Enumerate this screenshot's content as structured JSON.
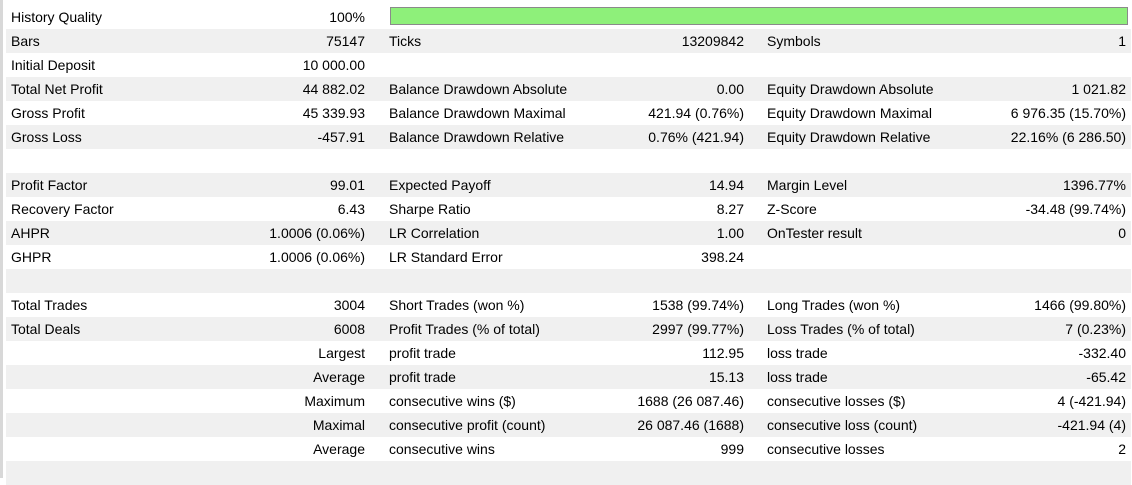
{
  "history_quality_percent": 100,
  "rows": [
    [
      "History Quality",
      "100%"
    ],
    [
      "Bars",
      "75147",
      "Ticks",
      "13209842",
      "Symbols",
      "1"
    ],
    [
      "Initial Deposit",
      "10 000.00"
    ],
    [
      "Total Net Profit",
      "44 882.02",
      "Balance Drawdown Absolute",
      "0.00",
      "Equity Drawdown Absolute",
      "1 021.82"
    ],
    [
      "Gross Profit",
      "45 339.93",
      "Balance Drawdown Maximal",
      "421.94 (0.76%)",
      "Equity Drawdown Maximal",
      "6 976.35 (15.70%)"
    ],
    [
      "Gross Loss",
      "-457.91",
      "Balance Drawdown Relative",
      "0.76% (421.94)",
      "Equity Drawdown Relative",
      "22.16% (6 286.50)"
    ],
    [],
    [
      "Profit Factor",
      "99.01",
      "Expected Payoff",
      "14.94",
      "Margin Level",
      "1396.77%"
    ],
    [
      "Recovery Factor",
      "6.43",
      "Sharpe Ratio",
      "8.27",
      "Z-Score",
      "-34.48 (99.74%)"
    ],
    [
      "AHPR",
      "1.0006 (0.06%)",
      "LR Correlation",
      "1.00",
      "OnTester result",
      "0"
    ],
    [
      "GHPR",
      "1.0006 (0.06%)",
      "LR Standard Error",
      "398.24"
    ],
    [],
    [
      "Total Trades",
      "3004",
      "Short Trades (won %)",
      "1538 (99.74%)",
      "Long Trades (won %)",
      "1466 (99.80%)"
    ],
    [
      "Total Deals",
      "6008",
      "Profit Trades (% of total)",
      "2997 (99.77%)",
      "Loss Trades (% of total)",
      "7 (0.23%)"
    ],
    [
      null,
      "Largest",
      "profit trade",
      "112.95",
      "loss trade",
      "-332.40"
    ],
    [
      null,
      "Average",
      "profit trade",
      "15.13",
      "loss trade",
      "-65.42"
    ],
    [
      null,
      "Maximum",
      "consecutive wins ($)",
      "1688 (26 087.46)",
      "consecutive losses ($)",
      "4 (-421.94)"
    ],
    [
      null,
      "Maximal",
      "consecutive profit (count)",
      "26 087.46 (1688)",
      "consecutive loss (count)",
      "-421.94 (4)"
    ],
    [
      null,
      "Average",
      "consecutive wins",
      "999",
      "consecutive losses",
      "2"
    ],
    []
  ]
}
